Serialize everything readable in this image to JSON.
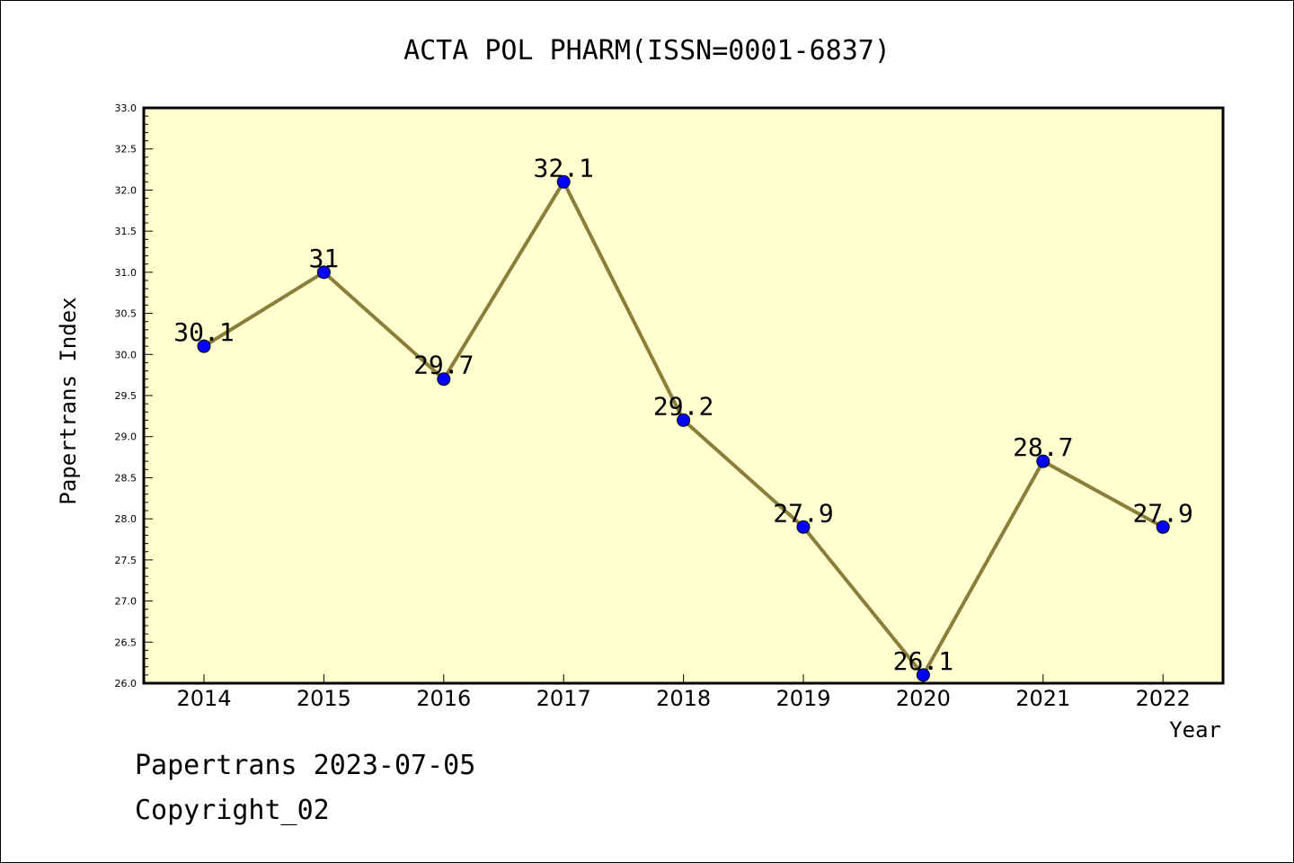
{
  "chart_data": {
    "type": "line",
    "title": "ACTA POL PHARM(ISSN=0001-6837)",
    "xlabel": "Year",
    "ylabel": "Papertrans Index",
    "categories": [
      "2014",
      "2015",
      "2016",
      "2017",
      "2018",
      "2019",
      "2020",
      "2021",
      "2022"
    ],
    "values": [
      30.1,
      31,
      29.7,
      32.1,
      29.2,
      27.9,
      26.1,
      28.7,
      27.9
    ],
    "data_labels": [
      "30.1",
      "31",
      "29.7",
      "32.1",
      "29.2",
      "27.9",
      "26.1",
      "28.7",
      "27.9"
    ],
    "ylim": [
      26.0,
      33.0
    ],
    "yticks": [
      "26.0",
      "26.5",
      "27.0",
      "27.5",
      "28.0",
      "28.5",
      "29.0",
      "29.5",
      "30.0",
      "30.5",
      "31.0",
      "31.5",
      "32.0",
      "32.5",
      "33.0"
    ],
    "grid": false,
    "colors": {
      "plot_background": "#ffffd0",
      "line": "#8b7d3a",
      "marker": "#0000ff"
    }
  },
  "footer": {
    "date_text": "Papertrans 2023-07-05",
    "copyright_text": "Copyright_02"
  }
}
